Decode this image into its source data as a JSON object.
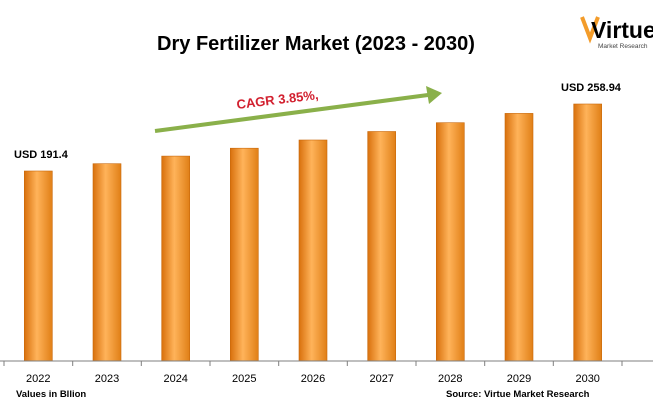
{
  "chart_data": {
    "type": "bar",
    "title": "Dry Fertilizer Market  (2023 - 2030)",
    "categories": [
      "2022",
      "2023",
      "2024",
      "2025",
      "2026",
      "2027",
      "2028",
      "2029",
      "2030"
    ],
    "values": [
      191.4,
      198.8,
      206.4,
      214.4,
      222.6,
      231.2,
      240.1,
      249.4,
      258.94
    ],
    "ylim": [
      0,
      270
    ],
    "grid": false,
    "data_labels": [
      {
        "category": "2022",
        "text": "USD 191.4"
      },
      {
        "category": "2030",
        "text": "USD 258.94"
      }
    ],
    "annotation": {
      "text": "CAGR 3.85%,"
    },
    "units_note": "Values in Bllion",
    "source": "Source: Virtue Market Research",
    "bar_color": "#f39c2a"
  },
  "logo": {
    "main": "Virtue",
    "sub": "Market Research"
  },
  "colors": {
    "arrow": "#8ab04a",
    "cagr_text": "#d2202f",
    "bar_light": "#ffc074",
    "bar_dark": "#d8700c"
  }
}
